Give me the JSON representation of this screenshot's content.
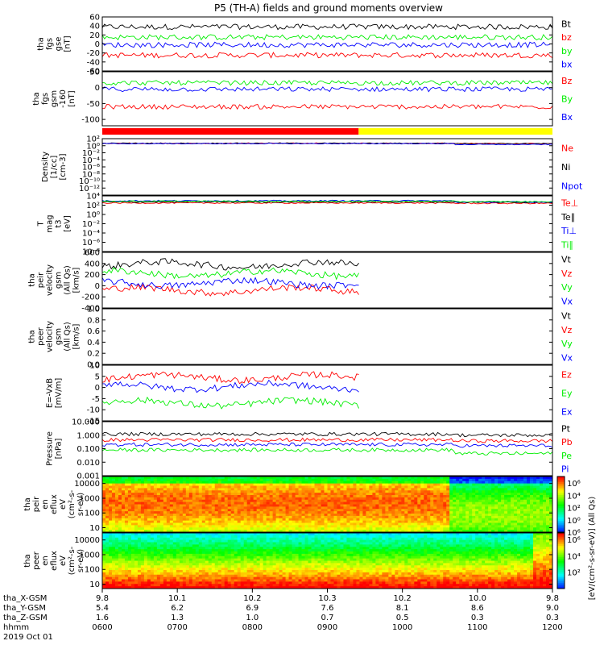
{
  "title": "P5 (TH-A) fields and ground moments overview",
  "colors": {
    "black": "#000000",
    "red": "#ff0000",
    "green": "#00ee00",
    "blue": "#0000ff",
    "yellow": "#ffff00"
  },
  "mode_bar": {
    "segments": [
      {
        "start": "0600",
        "end": "0925",
        "color": "#ff0000"
      },
      {
        "start": "0925",
        "end": "1200",
        "color": "#ffff00"
      }
    ]
  },
  "chart_data": [
    {
      "id": "fgs_gse",
      "type": "line",
      "ylabel_lines": [
        "tha",
        "fgs",
        "gse",
        "[nT]"
      ],
      "ylim": [
        -60,
        60
      ],
      "yticks": [
        "60",
        "40",
        "20",
        "0",
        "-20",
        "-40",
        "-60"
      ],
      "ytick_values": [
        60,
        40,
        20,
        0,
        -20,
        -40,
        -60
      ],
      "log": false,
      "series": [
        {
          "name": "Bt",
          "color": "#000000"
        },
        {
          "name": "bz",
          "color": "#ff0000"
        },
        {
          "name": "by",
          "color": "#00ee00"
        },
        {
          "name": "bx",
          "color": "#0000ff"
        }
      ]
    },
    {
      "id": "fgs_gsm",
      "type": "line",
      "ylabel_lines": [
        "tha",
        "fgs",
        "gsm",
        "-160",
        "[nT]"
      ],
      "ylim": [
        -120,
        50
      ],
      "yticks": [
        "50",
        "0",
        "-50",
        "-100"
      ],
      "ytick_values": [
        50,
        0,
        -50,
        -100
      ],
      "log": false,
      "series": [
        {
          "name": "Bz",
          "color": "#ff0000"
        },
        {
          "name": "By",
          "color": "#00ee00"
        },
        {
          "name": "Bx",
          "color": "#0000ff"
        }
      ]
    },
    {
      "id": "density",
      "type": "line",
      "ylabel_lines": [
        "Density",
        "[1/cc]",
        "[cm-3]"
      ],
      "ylim": [
        1e-14,
        100.0
      ],
      "yticks": [
        "10²",
        "10⁰",
        "10⁻²",
        "10⁻⁴",
        "10⁻⁶",
        "10⁻⁸",
        "10⁻¹⁰",
        "10⁻¹²"
      ],
      "ytick_values": [
        100,
        1,
        0.01,
        0.0001,
        1e-06,
        1e-08,
        1e-10,
        1e-12
      ],
      "log": true,
      "series": [
        {
          "name": "Ne",
          "color": "#ff0000"
        },
        {
          "name": "Ni",
          "color": "#000000"
        },
        {
          "name": "Npot",
          "color": "#0000ff"
        }
      ]
    },
    {
      "id": "temperature",
      "type": "line",
      "ylabel_lines": [
        "T",
        "mag",
        "t3",
        "[eV]"
      ],
      "ylim": [
        1e-08,
        10000.0
      ],
      "yticks": [
        "10⁴",
        "10²",
        "10⁰",
        "10⁻²",
        "10⁻⁴",
        "10⁻⁶",
        "10⁻⁸"
      ],
      "ytick_values": [
        10000,
        100,
        1,
        0.01,
        0.0001,
        1e-06,
        1e-08
      ],
      "log": true,
      "series": [
        {
          "name": "Te⊥",
          "color": "#ff0000"
        },
        {
          "name": "Te∥",
          "color": "#000000"
        },
        {
          "name": "Ti⊥",
          "color": "#0000ff"
        },
        {
          "name": "Ti∥",
          "color": "#00ee00"
        }
      ]
    },
    {
      "id": "peir_velocity",
      "type": "line",
      "ylabel_lines": [
        "tha",
        "peir",
        "velocity",
        "gsm",
        "(All Qs)",
        "[km/s]"
      ],
      "ylim": [
        -400,
        600
      ],
      "yticks": [
        "600",
        "400",
        "200",
        "0",
        "-200",
        "-400"
      ],
      "ytick_values": [
        600,
        400,
        200,
        0,
        -200,
        -400
      ],
      "log": false,
      "series": [
        {
          "name": "Vt",
          "color": "#000000"
        },
        {
          "name": "Vz",
          "color": "#ff0000"
        },
        {
          "name": "Vy",
          "color": "#00ee00"
        },
        {
          "name": "Vx",
          "color": "#0000ff"
        }
      ]
    },
    {
      "id": "peer_velocity",
      "type": "line",
      "ylabel_lines": [
        "tha",
        "peer",
        "velocity",
        "gsm",
        "(All Qs)",
        "[km/s]"
      ],
      "ylim": [
        0,
        1
      ],
      "yticks": [
        "1.0",
        "0.8",
        "0.6",
        "0.4",
        "0.2",
        "0.0"
      ],
      "ytick_values": [
        1.0,
        0.8,
        0.6,
        0.4,
        0.2,
        0.0
      ],
      "log": false,
      "series": [
        {
          "name": "Vt",
          "color": "#000000"
        },
        {
          "name": "Vz",
          "color": "#ff0000"
        },
        {
          "name": "Vy",
          "color": "#00ee00"
        },
        {
          "name": "Vx",
          "color": "#0000ff"
        }
      ]
    },
    {
      "id": "efield",
      "type": "line",
      "ylabel_lines": [
        "E=-VxB",
        "[mV/m]"
      ],
      "ylim": [
        -15,
        10
      ],
      "yticks": [
        "10",
        "5",
        "0",
        "-5",
        "-10",
        "-15"
      ],
      "ytick_values": [
        10,
        5,
        0,
        -5,
        -10,
        -15
      ],
      "log": false,
      "series": [
        {
          "name": "Ez",
          "color": "#ff0000"
        },
        {
          "name": "Ey",
          "color": "#00ee00"
        },
        {
          "name": "Ex",
          "color": "#0000ff"
        }
      ]
    },
    {
      "id": "pressure",
      "type": "line",
      "ylabel_lines": [
        "Pressure",
        "[nPa]"
      ],
      "ylim": [
        0.001,
        10
      ],
      "yticks": [
        "10.000",
        "1.000",
        "0.100",
        "0.010",
        "0.001"
      ],
      "ytick_values": [
        10,
        1,
        0.1,
        0.01,
        0.001
      ],
      "log": true,
      "series": [
        {
          "name": "Pt",
          "color": "#000000"
        },
        {
          "name": "Pb",
          "color": "#ff0000"
        },
        {
          "name": "Pe",
          "color": "#00ee00"
        },
        {
          "name": "Pi",
          "color": "#0000ff"
        }
      ]
    },
    {
      "id": "peir_spectrogram",
      "type": "heatmap",
      "ylabel_lines": [
        "tha",
        "peir",
        "en",
        "eflux",
        "eV",
        "(cm²-s-",
        "sr-eV)"
      ],
      "ylim": [
        5,
        30000
      ],
      "yticks": [
        "10000",
        "1000",
        "100",
        "10"
      ],
      "ytick_values": [
        10000,
        1000,
        100,
        10
      ],
      "log": true,
      "colorbar": {
        "labels": [
          "10⁶",
          "10⁴",
          "10²",
          "10⁰"
        ]
      }
    },
    {
      "id": "peer_spectrogram",
      "type": "heatmap",
      "ylabel_lines": [
        "tha",
        "peer",
        "en",
        "eflux",
        "eV",
        "(cm²-s-",
        "sr-eV)"
      ],
      "ylim": [
        5,
        30000
      ],
      "yticks": [
        "10000",
        "1000",
        "100",
        "10"
      ],
      "ytick_values": [
        10000,
        1000,
        100,
        10
      ],
      "log": true,
      "colorbar": {
        "labels": [
          "10⁶",
          "10⁴",
          "10²"
        ]
      }
    }
  ],
  "colorbar_title": "[eV/(cm²-s-sr-eV)] (All Qs)",
  "colorbar_overlap_label": "10⁶",
  "xaxis": {
    "row_labels": [
      "tha_X-GSM",
      "tha_Y-GSM",
      "tha_Z-GSM",
      "hhmm",
      "2019 Oct 01"
    ],
    "ticks": [
      {
        "time": "0600",
        "values": [
          "9.8",
          "5.4",
          "1.6",
          "0600"
        ]
      },
      {
        "time": "0700",
        "values": [
          "10.1",
          "6.2",
          "1.3",
          "0700"
        ]
      },
      {
        "time": "0800",
        "values": [
          "10.2",
          "6.9",
          "1.0",
          "0800"
        ]
      },
      {
        "time": "0900",
        "values": [
          "10.3",
          "7.6",
          "0.7",
          "0900"
        ]
      },
      {
        "time": "1000",
        "values": [
          "10.2",
          "8.1",
          "0.5",
          "1000"
        ]
      },
      {
        "time": "1100",
        "values": [
          "10.0",
          "8.6",
          "0.3",
          "1100"
        ]
      },
      {
        "time": "1200",
        "values": [
          "9.8",
          "9.0",
          "0.3",
          "1200"
        ]
      }
    ]
  }
}
